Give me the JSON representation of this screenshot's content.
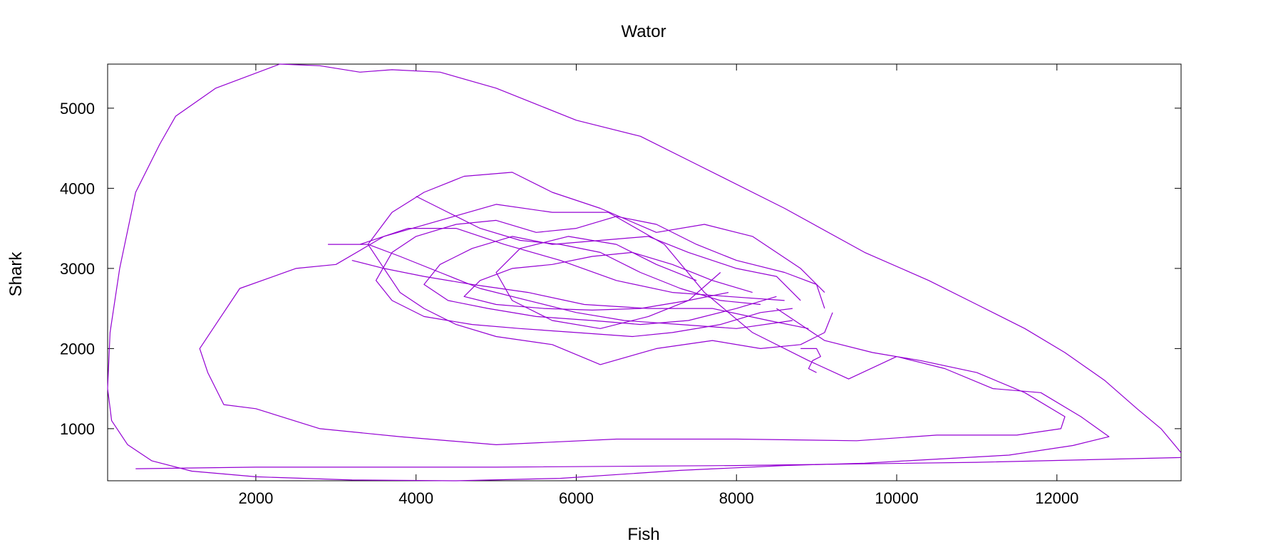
{
  "chart_data": {
    "type": "line",
    "title": "Wator",
    "xlabel": "Fish",
    "ylabel": "Shark",
    "xlim": [
      150,
      13550
    ],
    "ylim": [
      350,
      5550
    ],
    "xticks": [
      2000,
      4000,
      6000,
      8000,
      10000,
      12000
    ],
    "yticks": [
      1000,
      2000,
      3000,
      4000,
      5000
    ],
    "grid": false,
    "legend": "none",
    "line_color": "#9400d3",
    "series": [
      {
        "values": [
          [
            13550,
            700
          ],
          [
            13300,
            1000
          ],
          [
            13000,
            1250
          ],
          [
            12600,
            1600
          ],
          [
            12100,
            1950
          ],
          [
            11600,
            2250
          ],
          [
            11000,
            2550
          ],
          [
            10400,
            2850
          ],
          [
            9600,
            3200
          ],
          [
            8600,
            3750
          ],
          [
            7500,
            4300
          ],
          [
            6800,
            4650
          ],
          [
            6000,
            4850
          ],
          [
            5500,
            5050
          ],
          [
            5000,
            5250
          ],
          [
            4300,
            5450
          ],
          [
            3700,
            5480
          ],
          [
            3300,
            5450
          ],
          [
            2800,
            5530
          ],
          [
            2300,
            5550
          ],
          [
            1500,
            5250
          ],
          [
            1000,
            4900
          ],
          [
            800,
            4550
          ],
          [
            500,
            3950
          ],
          [
            300,
            3000
          ],
          [
            180,
            2200
          ],
          [
            150,
            1500
          ],
          [
            200,
            1100
          ],
          [
            400,
            800
          ],
          [
            700,
            600
          ],
          [
            1200,
            470
          ],
          [
            2000,
            400
          ],
          [
            3200,
            360
          ],
          [
            4500,
            350
          ],
          [
            5800,
            380
          ],
          [
            7300,
            480
          ],
          [
            8600,
            540
          ],
          [
            9600,
            570
          ],
          [
            10500,
            620
          ],
          [
            11400,
            670
          ],
          [
            12200,
            790
          ],
          [
            12650,
            900
          ],
          [
            12300,
            1150
          ],
          [
            11800,
            1450
          ],
          [
            11200,
            1500
          ],
          [
            10600,
            1750
          ],
          [
            10000,
            1900
          ],
          [
            9400,
            1620
          ],
          [
            8900,
            1850
          ],
          [
            8200,
            2200
          ],
          [
            7600,
            2700
          ],
          [
            7100,
            3300
          ],
          [
            6400,
            3700
          ],
          [
            5700,
            3700
          ],
          [
            5000,
            3800
          ],
          [
            4300,
            3600
          ],
          [
            3600,
            3400
          ],
          [
            3000,
            3050
          ],
          [
            2500,
            3000
          ],
          [
            1800,
            2750
          ],
          [
            1500,
            2300
          ],
          [
            1300,
            2000
          ],
          [
            1400,
            1700
          ],
          [
            1600,
            1300
          ],
          [
            2000,
            1250
          ],
          [
            2800,
            1000
          ],
          [
            3800,
            900
          ],
          [
            5000,
            800
          ],
          [
            6500,
            870
          ],
          [
            8000,
            870
          ],
          [
            9500,
            850
          ],
          [
            10500,
            920
          ],
          [
            11500,
            920
          ],
          [
            12050,
            1000
          ],
          [
            12100,
            1150
          ],
          [
            11600,
            1450
          ],
          [
            11000,
            1700
          ],
          [
            10300,
            1850
          ],
          [
            9700,
            1950
          ],
          [
            9100,
            2100
          ],
          [
            8800,
            2300
          ],
          [
            8500,
            2500
          ]
        ]
      },
      {
        "values": [
          [
            500,
            500
          ],
          [
            2000,
            520
          ],
          [
            5000,
            520
          ],
          [
            8000,
            540
          ],
          [
            11000,
            580
          ],
          [
            13550,
            640
          ]
        ]
      },
      {
        "values": [
          [
            9100,
            2500
          ],
          [
            9000,
            2800
          ],
          [
            8600,
            2950
          ],
          [
            8000,
            3100
          ],
          [
            7500,
            3300
          ],
          [
            7000,
            3550
          ],
          [
            6500,
            3650
          ],
          [
            6000,
            3500
          ],
          [
            5500,
            3450
          ],
          [
            5000,
            3600
          ],
          [
            4500,
            3550
          ],
          [
            4000,
            3400
          ],
          [
            3700,
            3200
          ],
          [
            3500,
            2850
          ],
          [
            3700,
            2600
          ],
          [
            4100,
            2400
          ],
          [
            4700,
            2300
          ],
          [
            5300,
            2250
          ],
          [
            6000,
            2200
          ],
          [
            6700,
            2150
          ],
          [
            7200,
            2200
          ],
          [
            7800,
            2300
          ],
          [
            8300,
            2450
          ],
          [
            8700,
            2500
          ]
        ]
      },
      {
        "values": [
          [
            8800,
            2600
          ],
          [
            8500,
            2900
          ],
          [
            8000,
            3000
          ],
          [
            7400,
            3200
          ],
          [
            6900,
            3400
          ],
          [
            6300,
            3350
          ],
          [
            5700,
            3300
          ],
          [
            5200,
            3400
          ],
          [
            4700,
            3250
          ],
          [
            4300,
            3050
          ],
          [
            4100,
            2800
          ],
          [
            4400,
            2600
          ],
          [
            4900,
            2500
          ],
          [
            5500,
            2400
          ],
          [
            6200,
            2350
          ],
          [
            6800,
            2300
          ],
          [
            7400,
            2350
          ],
          [
            8000,
            2500
          ],
          [
            8500,
            2650
          ]
        ]
      },
      {
        "values": [
          [
            8200,
            2700
          ],
          [
            7700,
            2850
          ],
          [
            7200,
            3050
          ],
          [
            6700,
            3200
          ],
          [
            6200,
            3150
          ],
          [
            5700,
            3050
          ],
          [
            5200,
            3000
          ],
          [
            4800,
            2850
          ],
          [
            4600,
            2650
          ],
          [
            5000,
            2550
          ],
          [
            5600,
            2500
          ],
          [
            6200,
            2480
          ],
          [
            6800,
            2500
          ],
          [
            7400,
            2600
          ],
          [
            7900,
            2700
          ]
        ]
      },
      {
        "values": [
          [
            7800,
            2950
          ],
          [
            7400,
            2600
          ],
          [
            6900,
            2400
          ],
          [
            6300,
            2250
          ],
          [
            5700,
            2350
          ],
          [
            5200,
            2600
          ],
          [
            5000,
            2950
          ],
          [
            5300,
            3250
          ],
          [
            5900,
            3400
          ],
          [
            6500,
            3300
          ],
          [
            7000,
            3050
          ],
          [
            7500,
            2850
          ]
        ]
      },
      {
        "values": [
          [
            9200,
            2450
          ],
          [
            9100,
            2200
          ],
          [
            8800,
            2050
          ],
          [
            8300,
            2000
          ],
          [
            7700,
            2100
          ],
          [
            7000,
            2000
          ],
          [
            6300,
            1800
          ],
          [
            5700,
            2050
          ],
          [
            5000,
            2150
          ],
          [
            4500,
            2300
          ],
          [
            4100,
            2500
          ],
          [
            3800,
            2700
          ],
          [
            3600,
            3000
          ],
          [
            3400,
            3300
          ],
          [
            3700,
            3700
          ],
          [
            4100,
            3950
          ],
          [
            4600,
            4150
          ],
          [
            5200,
            4200
          ],
          [
            5700,
            3950
          ],
          [
            6300,
            3750
          ],
          [
            7000,
            3450
          ],
          [
            7600,
            3550
          ],
          [
            8200,
            3400
          ],
          [
            8800,
            3000
          ],
          [
            9100,
            2700
          ]
        ]
      },
      {
        "values": [
          [
            3200,
            3100
          ],
          [
            3600,
            3000
          ],
          [
            4100,
            2900
          ],
          [
            4700,
            2800
          ],
          [
            5400,
            2700
          ],
          [
            6100,
            2550
          ],
          [
            6900,
            2500
          ],
          [
            7700,
            2500
          ],
          [
            8400,
            2350
          ],
          [
            8900,
            2250
          ]
        ]
      },
      {
        "values": [
          [
            3300,
            3300
          ],
          [
            3900,
            3500
          ],
          [
            4500,
            3500
          ],
          [
            5100,
            3300
          ],
          [
            5800,
            3100
          ],
          [
            6500,
            2850
          ],
          [
            7200,
            2700
          ],
          [
            7900,
            2650
          ],
          [
            8600,
            2600
          ]
        ]
      },
      {
        "values": [
          [
            2900,
            3300
          ],
          [
            3400,
            3300
          ],
          [
            3800,
            3150
          ],
          [
            4300,
            2950
          ],
          [
            4800,
            2750
          ],
          [
            5400,
            2600
          ],
          [
            6000,
            2450
          ],
          [
            6600,
            2350
          ],
          [
            7300,
            2300
          ],
          [
            8000,
            2250
          ],
          [
            8700,
            2350
          ]
        ]
      },
      {
        "values": [
          [
            4000,
            3900
          ],
          [
            4400,
            3700
          ],
          [
            4800,
            3500
          ],
          [
            5300,
            3350
          ],
          [
            5800,
            3300
          ],
          [
            6300,
            3200
          ],
          [
            6800,
            2950
          ],
          [
            7300,
            2750
          ],
          [
            7800,
            2600
          ],
          [
            8300,
            2550
          ]
        ]
      },
      {
        "values": [
          [
            9000,
            1700
          ],
          [
            8900,
            1750
          ],
          [
            8950,
            1850
          ],
          [
            9050,
            1900
          ],
          [
            9000,
            2000
          ],
          [
            8800,
            2000
          ]
        ]
      }
    ]
  }
}
